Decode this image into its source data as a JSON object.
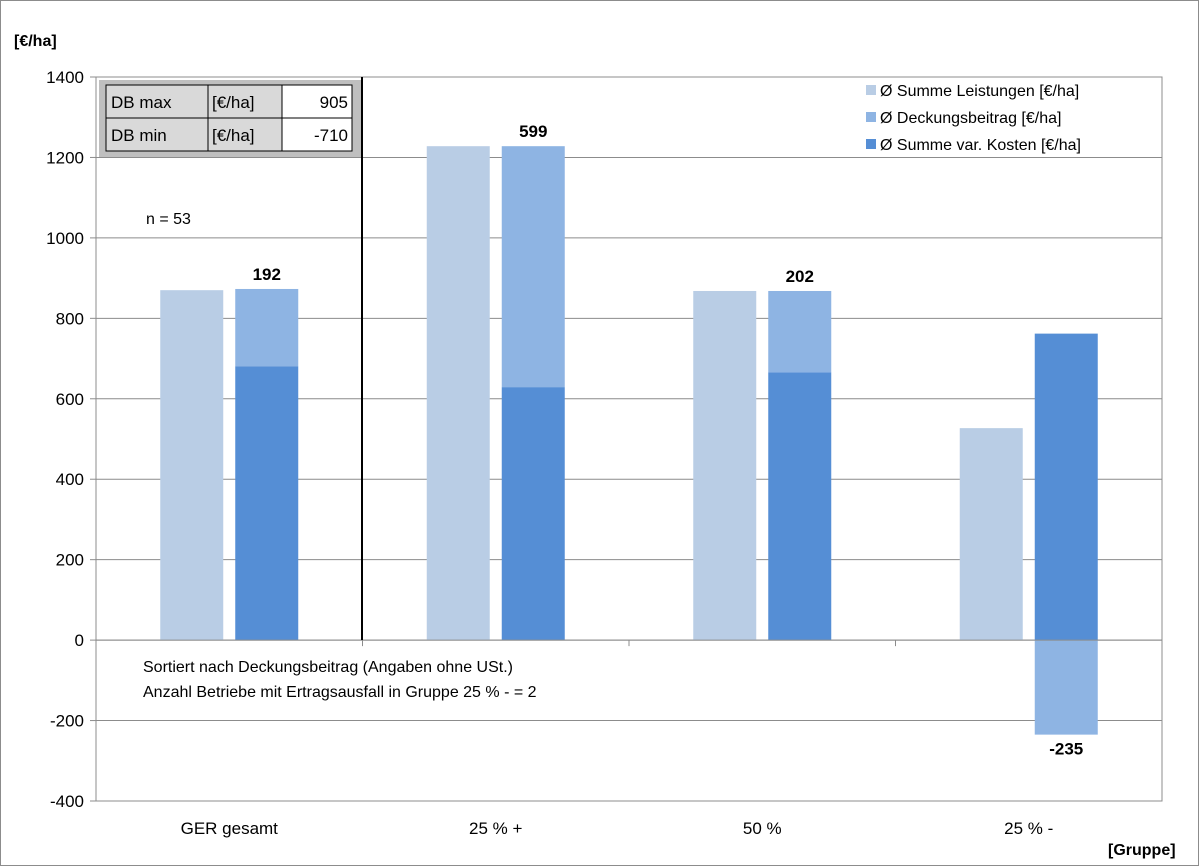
{
  "chart_data": {
    "type": "bar",
    "ylabel": "[€/ha]",
    "xlabel": "[Gruppe]",
    "ylim": [
      -400,
      1400
    ],
    "yticks": [
      -400,
      -200,
      0,
      200,
      400,
      600,
      800,
      1000,
      1200,
      1400
    ],
    "grid": true,
    "legend_position": "top-right",
    "categories": [
      "GER gesamt",
      "25 % +",
      "50 %",
      "25 % -"
    ],
    "series": [
      {
        "name": "Ø Summe Leistungen [€/ha]",
        "color": "#b9cde5",
        "values": [
          870,
          1228,
          868,
          527
        ]
      },
      {
        "name": "Ø Deckungsbeitrag [€/ha]",
        "color": "#8eb4e3",
        "values": [
          192,
          599,
          202,
          -235
        ]
      },
      {
        "name": "Ø Summe var. Kosten [€/ha]",
        "color": "#558ed5",
        "values": [
          681,
          629,
          666,
          762
        ]
      }
    ],
    "db_labels": [
      "192",
      "599",
      "202",
      "-235"
    ],
    "annotations": {
      "n": "n = 53",
      "note_line1": "Sortiert nach Deckungsbeitrag (Angaben ohne USt.)",
      "note_line2": "Anzahl Betriebe mit Ertragsausfall in Gruppe 25 % - = 2"
    },
    "info_table": [
      [
        "DB max",
        "[€/ha]",
        "905"
      ],
      [
        "DB min",
        "[€/ha]",
        "-710"
      ]
    ]
  }
}
